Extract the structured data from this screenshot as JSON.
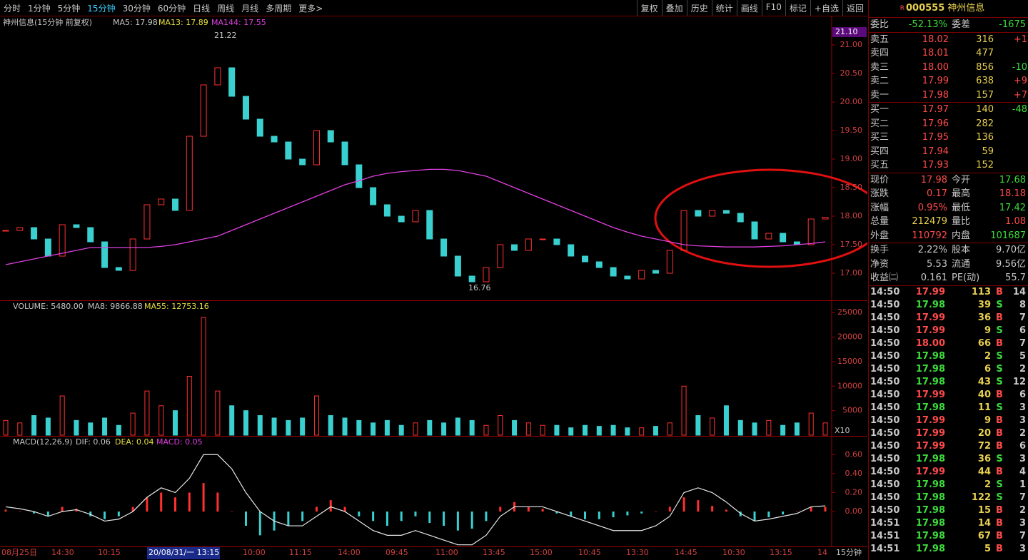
{
  "toolbar": {
    "periods": [
      "分时",
      "1分钟",
      "5分钟",
      "15分钟",
      "30分钟",
      "60分钟",
      "日线",
      "周线",
      "月线",
      "多周期",
      "更多>"
    ],
    "tools": [
      "复权",
      "叠加",
      "历史",
      "统计",
      "画线",
      "F10",
      "标记",
      "+自选",
      "返回"
    ]
  },
  "price_panel": {
    "title": "神州信息(15分钟 前复权)",
    "ma5": "MA5: 17.98",
    "ma13": "MA13: 17.89",
    "ma144": "MA144: 17.55",
    "high_label": "21.22",
    "low_label": "16.76",
    "last_tag": "21.10",
    "ylim": [
      16.5375,
      21.2875
    ],
    "yticks": [
      {
        "value": 17,
        "label": "17.00"
      },
      {
        "value": 17.5,
        "label": "17.50"
      },
      {
        "value": 18,
        "label": "18.00"
      },
      {
        "value": 18.5,
        "label": "18.50"
      },
      {
        "value": 19,
        "label": "19.00"
      },
      {
        "value": 19.5,
        "label": "19.50"
      },
      {
        "value": 20,
        "label": "20.00"
      },
      {
        "value": 20.5,
        "label": "20.50"
      },
      {
        "value": 21,
        "label": "21.00"
      }
    ],
    "close": [
      17.75,
      17.8,
      17.6,
      17.3,
      17.85,
      17.8,
      17.55,
      17.1,
      17.05,
      17.6,
      18.2,
      18.3,
      18.1,
      19.4,
      20.3,
      20.6,
      20.1,
      19.7,
      19.4,
      19.3,
      19.0,
      18.9,
      19.5,
      19.3,
      18.9,
      18.5,
      18.2,
      18.0,
      17.9,
      18.1,
      17.6,
      17.3,
      16.95,
      16.85,
      17.1,
      17.5,
      17.4,
      17.6,
      17.6,
      17.5,
      17.3,
      17.2,
      17.1,
      16.95,
      16.9,
      17.05,
      17.0,
      17.4,
      18.1,
      18.0,
      18.1,
      18.05,
      17.9,
      17.6,
      17.7,
      17.55,
      17.5,
      17.95,
      17.98
    ],
    "ma144_values": [
      17.15,
      17.2,
      17.25,
      17.3,
      17.35,
      17.4,
      17.45,
      17.45,
      17.45,
      17.45,
      17.45,
      17.47,
      17.5,
      17.55,
      17.6,
      17.65,
      17.75,
      17.85,
      17.95,
      18.05,
      18.15,
      18.25,
      18.35,
      18.45,
      18.55,
      18.62,
      18.7,
      18.75,
      18.78,
      18.8,
      18.82,
      18.82,
      18.8,
      18.75,
      18.7,
      18.6,
      18.5,
      18.4,
      18.3,
      18.2,
      18.1,
      18.0,
      17.9,
      17.8,
      17.72,
      17.65,
      17.6,
      17.55,
      17.5,
      17.48,
      17.47,
      17.46,
      17.46,
      17.46,
      17.47,
      17.48,
      17.5,
      17.52,
      17.55
    ]
  },
  "volume_panel": {
    "title": "VOLUME: 5480.00",
    "ma8": "MA8: 9866.88",
    "ma55": "MA55: 12753.16",
    "scale_label": "X10",
    "ylim": [
      0,
      27353
    ],
    "yticks": [
      5000,
      10000,
      15000,
      20000,
      25000
    ],
    "values": [
      3000,
      2500,
      4000,
      3500,
      8000,
      3000,
      2500,
      3500,
      2000,
      4500,
      9000,
      6000,
      5000,
      12000,
      24000,
      9000,
      6000,
      5000,
      4000,
      3500,
      3000,
      3500,
      8000,
      4000,
      3500,
      3000,
      2500,
      3000,
      2000,
      2500,
      3000,
      2500,
      3500,
      3000,
      2000,
      4000,
      3000,
      2500,
      2000,
      2000,
      1500,
      2000,
      1800,
      2000,
      1500,
      1500,
      1800,
      2500,
      10000,
      4000,
      3500,
      6000,
      3000,
      2500,
      3000,
      2000,
      2500,
      4500,
      2500
    ]
  },
  "macd_panel": {
    "title": "MACD(12,26,9)",
    "dif_label": "DIF: 0.06",
    "dea_label": "DEA: 0.04",
    "macd_label": "MACD: 0.05",
    "ylim": [
      -0.36,
      0.79
    ],
    "yticks": [
      {
        "value": 0,
        "label": "0.00"
      },
      {
        "value": 0.2,
        "label": "0.20"
      },
      {
        "value": 0.4,
        "label": "0.40"
      },
      {
        "value": 0.6,
        "label": "0.60"
      }
    ],
    "macd": [
      0.02,
      0.0,
      -0.02,
      -0.05,
      0.05,
      0.03,
      -0.05,
      -0.08,
      -0.05,
      0.05,
      0.15,
      0.2,
      0.15,
      0.2,
      0.3,
      0.2,
      0.0,
      -0.15,
      -0.25,
      -0.2,
      -0.15,
      -0.1,
      0.05,
      0.12,
      0.05,
      -0.05,
      -0.1,
      -0.15,
      -0.1,
      -0.05,
      -0.12,
      -0.15,
      -0.2,
      -0.18,
      -0.1,
      0.05,
      0.1,
      0.05,
      0.03,
      -0.02,
      -0.05,
      -0.08,
      -0.08,
      -0.06,
      -0.04,
      -0.02,
      0.0,
      0.05,
      0.15,
      0.12,
      0.06,
      0.02,
      -0.05,
      -0.1,
      -0.06,
      -0.03,
      0.0,
      0.05,
      0.05
    ],
    "dif": [
      0.05,
      0.03,
      0.0,
      -0.05,
      0.0,
      0.02,
      -0.03,
      -0.1,
      -0.08,
      0.0,
      0.15,
      0.25,
      0.2,
      0.35,
      0.6,
      0.6,
      0.45,
      0.2,
      0.0,
      -0.1,
      -0.15,
      -0.15,
      -0.05,
      0.05,
      0.0,
      -0.1,
      -0.2,
      -0.25,
      -0.25,
      -0.2,
      -0.25,
      -0.3,
      -0.35,
      -0.35,
      -0.25,
      -0.05,
      0.05,
      0.05,
      0.05,
      0.0,
      -0.05,
      -0.1,
      -0.15,
      -0.2,
      -0.2,
      -0.2,
      -0.15,
      -0.05,
      0.2,
      0.25,
      0.2,
      0.1,
      -0.02,
      -0.1,
      -0.08,
      -0.05,
      -0.02,
      0.05,
      0.06
    ]
  },
  "x_labels": [
    "08月25日",
    "14:30",
    "10:15",
    "20/08/31/一 13:15",
    "10:00",
    "11:15",
    "14:00",
    "09:45",
    "11:00",
    "13:45",
    "15:00",
    "10:45",
    "13:30",
    "14:45",
    "10:30",
    "13:15",
    "14"
  ],
  "period_label": "15分钟",
  "quote": {
    "code_mark": "R",
    "code": "000555",
    "name": "神州信息",
    "ratio": {
      "cells": [
        "委比",
        "-52.13%",
        "委差",
        "-1675"
      ],
      "colors": [
        "#c8c8c8",
        "#3cdc3c",
        "#c8c8c8",
        "#3cdc3c"
      ]
    },
    "sell": [
      {
        "cells": [
          "卖五",
          "18.02",
          "316",
          "+1"
        ],
        "colors": [
          "#c8c8c8",
          "#ff4a4a",
          "#e8d050",
          "#ff4a4a"
        ]
      },
      {
        "cells": [
          "卖四",
          "18.01",
          "477"
        ],
        "colors": [
          "#c8c8c8",
          "#ff4a4a",
          "#e8d050"
        ]
      },
      {
        "cells": [
          "卖三",
          "18.00",
          "856",
          "-10"
        ],
        "colors": [
          "#c8c8c8",
          "#ff4a4a",
          "#e8d050",
          "#3cdc3c"
        ]
      },
      {
        "cells": [
          "卖二",
          "17.99",
          "638",
          "+9"
        ],
        "colors": [
          "#c8c8c8",
          "#ff4a4a",
          "#e8d050",
          "#ff4a4a"
        ]
      },
      {
        "cells": [
          "卖一",
          "17.98",
          "157",
          "+7"
        ],
        "colors": [
          "#c8c8c8",
          "#ff4a4a",
          "#e8d050",
          "#ff4a4a"
        ]
      }
    ],
    "buy": [
      {
        "cells": [
          "买一",
          "17.97",
          "140",
          "-48"
        ],
        "colors": [
          "#c8c8c8",
          "#ff4a4a",
          "#e8d050",
          "#3cdc3c"
        ]
      },
      {
        "cells": [
          "买二",
          "17.96",
          "282"
        ],
        "colors": [
          "#c8c8c8",
          "#ff4a4a",
          "#e8d050"
        ]
      },
      {
        "cells": [
          "买三",
          "17.95",
          "136"
        ],
        "colors": [
          "#c8c8c8",
          "#ff4a4a",
          "#e8d050"
        ]
      },
      {
        "cells": [
          "买四",
          "17.94",
          "59"
        ],
        "colors": [
          "#c8c8c8",
          "#ff4a4a",
          "#e8d050"
        ]
      },
      {
        "cells": [
          "买五",
          "17.93",
          "152"
        ],
        "colors": [
          "#c8c8c8",
          "#ff4a4a",
          "#e8d050"
        ]
      }
    ],
    "stats": [
      {
        "cells": [
          "现价",
          "17.98",
          "今开",
          "17.68"
        ],
        "colors": [
          "#c8c8c8",
          "#ff4a4a",
          "#c8c8c8",
          "#3cdc3c"
        ]
      },
      {
        "cells": [
          "涨跌",
          "0.17",
          "最高",
          "18.18"
        ],
        "colors": [
          "#c8c8c8",
          "#ff4a4a",
          "#c8c8c8",
          "#ff4a4a"
        ]
      },
      {
        "cells": [
          "涨幅",
          "0.95%",
          "最低",
          "17.42"
        ],
        "colors": [
          "#c8c8c8",
          "#ff4a4a",
          "#c8c8c8",
          "#3cdc3c"
        ]
      },
      {
        "cells": [
          "总量",
          "212479",
          "量比",
          "1.08"
        ],
        "colors": [
          "#c8c8c8",
          "#e8d050",
          "#c8c8c8",
          "#ff4a4a"
        ]
      },
      {
        "cells": [
          "外盘",
          "110792",
          "内盘",
          "101687"
        ],
        "colors": [
          "#c8c8c8",
          "#ff4a4a",
          "#c8c8c8",
          "#3cdc3c"
        ]
      }
    ],
    "funds": [
      {
        "cells": [
          "换手",
          "2.22%",
          "股本",
          "9.70亿"
        ],
        "colors": [
          "#c8c8c8",
          "#c8c8c8",
          "#c8c8c8",
          "#c8c8c8"
        ]
      },
      {
        "cells": [
          "净资",
          "5.53",
          "流通",
          "9.56亿"
        ],
        "colors": [
          "#c8c8c8",
          "#c8c8c8",
          "#c8c8c8",
          "#c8c8c8"
        ]
      },
      {
        "cells": [
          "收益㈡",
          "0.161",
          "PE(动)",
          "55.7"
        ],
        "colors": [
          "#c8c8c8",
          "#c8c8c8",
          "#c8c8c8",
          "#c8c8c8"
        ]
      }
    ],
    "trades": [
      {
        "cells": [
          "14:50",
          "17.99",
          "113",
          "B",
          "14"
        ],
        "colors": [
          "#c8c8c8",
          "#ff4a4a",
          "#e8d050",
          "#ff4a4a",
          "#c8c8c8"
        ]
      },
      {
        "cells": [
          "14:50",
          "17.98",
          "39",
          "S",
          "8"
        ],
        "colors": [
          "#c8c8c8",
          "#3cdc3c",
          "#e8d050",
          "#3cdc3c",
          "#c8c8c8"
        ]
      },
      {
        "cells": [
          "14:50",
          "17.99",
          "36",
          "B",
          "7"
        ],
        "colors": [
          "#c8c8c8",
          "#ff4a4a",
          "#e8d050",
          "#ff4a4a",
          "#c8c8c8"
        ]
      },
      {
        "cells": [
          "14:50",
          "17.99",
          "9",
          "S",
          "6"
        ],
        "colors": [
          "#c8c8c8",
          "#ff4a4a",
          "#e8d050",
          "#3cdc3c",
          "#c8c8c8"
        ]
      },
      {
        "cells": [
          "14:50",
          "18.00",
          "66",
          "B",
          "7"
        ],
        "colors": [
          "#c8c8c8",
          "#ff4a4a",
          "#e8d050",
          "#ff4a4a",
          "#c8c8c8"
        ]
      },
      {
        "cells": [
          "14:50",
          "17.98",
          "2",
          "S",
          "5"
        ],
        "colors": [
          "#c8c8c8",
          "#3cdc3c",
          "#e8d050",
          "#3cdc3c",
          "#c8c8c8"
        ]
      },
      {
        "cells": [
          "14:50",
          "17.98",
          "6",
          "S",
          "2"
        ],
        "colors": [
          "#c8c8c8",
          "#3cdc3c",
          "#e8d050",
          "#3cdc3c",
          "#c8c8c8"
        ]
      },
      {
        "cells": [
          "14:50",
          "17.98",
          "43",
          "S",
          "12"
        ],
        "colors": [
          "#c8c8c8",
          "#3cdc3c",
          "#e8d050",
          "#3cdc3c",
          "#c8c8c8"
        ]
      },
      {
        "cells": [
          "14:50",
          "17.99",
          "40",
          "B",
          "6"
        ],
        "colors": [
          "#c8c8c8",
          "#ff4a4a",
          "#e8d050",
          "#ff4a4a",
          "#c8c8c8"
        ]
      },
      {
        "cells": [
          "14:50",
          "17.98",
          "11",
          "S",
          "3"
        ],
        "colors": [
          "#c8c8c8",
          "#3cdc3c",
          "#e8d050",
          "#3cdc3c",
          "#c8c8c8"
        ]
      },
      {
        "cells": [
          "14:50",
          "17.99",
          "9",
          "B",
          "3"
        ],
        "colors": [
          "#c8c8c8",
          "#ff4a4a",
          "#e8d050",
          "#ff4a4a",
          "#c8c8c8"
        ]
      },
      {
        "cells": [
          "14:50",
          "17.99",
          "20",
          "B",
          "2"
        ],
        "colors": [
          "#c8c8c8",
          "#ff4a4a",
          "#e8d050",
          "#ff4a4a",
          "#c8c8c8"
        ]
      },
      {
        "cells": [
          "14:50",
          "17.99",
          "72",
          "B",
          "6"
        ],
        "colors": [
          "#c8c8c8",
          "#ff4a4a",
          "#e8d050",
          "#ff4a4a",
          "#c8c8c8"
        ]
      },
      {
        "cells": [
          "14:50",
          "17.98",
          "36",
          "S",
          "3"
        ],
        "colors": [
          "#c8c8c8",
          "#3cdc3c",
          "#e8d050",
          "#3cdc3c",
          "#c8c8c8"
        ]
      },
      {
        "cells": [
          "14:50",
          "17.99",
          "44",
          "B",
          "4"
        ],
        "colors": [
          "#c8c8c8",
          "#ff4a4a",
          "#e8d050",
          "#ff4a4a",
          "#c8c8c8"
        ]
      },
      {
        "cells": [
          "14:50",
          "17.98",
          "2",
          "S",
          "1"
        ],
        "colors": [
          "#c8c8c8",
          "#3cdc3c",
          "#e8d050",
          "#3cdc3c",
          "#c8c8c8"
        ]
      },
      {
        "cells": [
          "14:50",
          "17.98",
          "122",
          "S",
          "7"
        ],
        "colors": [
          "#c8c8c8",
          "#3cdc3c",
          "#e8d050",
          "#3cdc3c",
          "#c8c8c8"
        ]
      },
      {
        "cells": [
          "14:50",
          "17.98",
          "15",
          "B",
          "2"
        ],
        "colors": [
          "#c8c8c8",
          "#3cdc3c",
          "#e8d050",
          "#ff4a4a",
          "#c8c8c8"
        ]
      },
      {
        "cells": [
          "14:51",
          "17.98",
          "14",
          "B",
          "3"
        ],
        "colors": [
          "#c8c8c8",
          "#3cdc3c",
          "#e8d050",
          "#ff4a4a",
          "#c8c8c8"
        ]
      },
      {
        "cells": [
          "14:51",
          "17.98",
          "67",
          "B",
          "7"
        ],
        "colors": [
          "#c8c8c8",
          "#3cdc3c",
          "#e8d050",
          "#ff4a4a",
          "#c8c8c8"
        ]
      },
      {
        "cells": [
          "14:51",
          "17.98",
          "5",
          "B",
          "3"
        ],
        "colors": [
          "#c8c8c8",
          "#3cdc3c",
          "#e8d050",
          "#ff4a4a",
          "#c8c8c8"
        ]
      }
    ]
  }
}
